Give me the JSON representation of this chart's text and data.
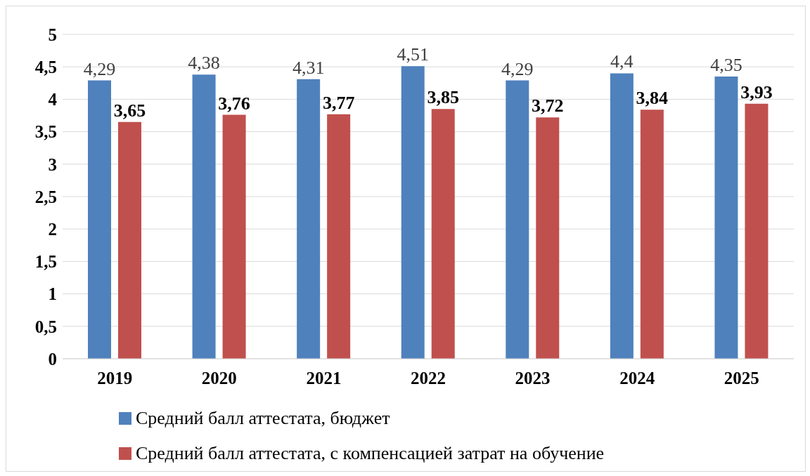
{
  "chart_data": {
    "type": "bar",
    "categories": [
      "2019",
      "2020",
      "2021",
      "2022",
      "2023",
      "2024",
      "2025"
    ],
    "series": [
      {
        "name": "Средний балл аттестата, бюджет",
        "color": "#4f81bd",
        "values": [
          4.29,
          4.38,
          4.31,
          4.51,
          4.29,
          4.4,
          4.35
        ],
        "value_labels": [
          "4,29",
          "4,38",
          "4,31",
          "4,51",
          "4,29",
          "4,4",
          "4,35"
        ]
      },
      {
        "name": "Средний балл аттестата, с компенсацией затрат на обучение",
        "color": "#c0504d",
        "values": [
          3.65,
          3.76,
          3.77,
          3.85,
          3.72,
          3.84,
          3.93
        ],
        "value_labels": [
          "3,65",
          "3,76",
          "3,77",
          "3,85",
          "3,72",
          "3,84",
          "3,93"
        ]
      }
    ],
    "ylim": [
      0,
      5
    ],
    "yticks": [
      0,
      {
        "value": 0.5,
        "label": "0,5"
      },
      1,
      {
        "value": 1.5,
        "label": "1,5"
      },
      2,
      {
        "value": 2.5,
        "label": "2,5"
      },
      3,
      {
        "value": 3.5,
        "label": "3,5"
      },
      4,
      {
        "value": 4.5,
        "label": "4,5"
      },
      5
    ],
    "grid": "y",
    "legend": "bottom left"
  }
}
